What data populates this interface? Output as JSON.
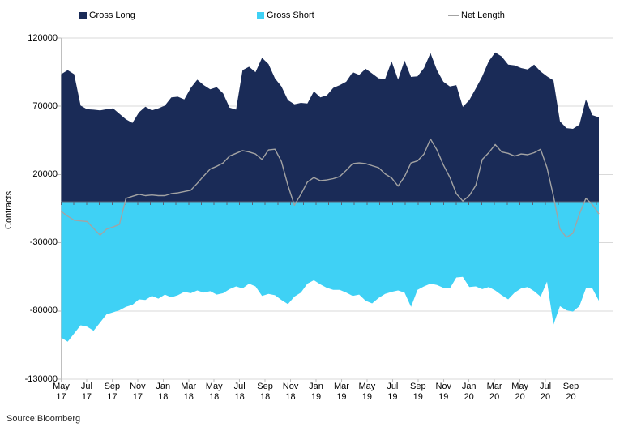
{
  "y_axis": {
    "title": "Contracts"
  },
  "source": "Source:Bloomberg",
  "colors": {
    "gross_long": "#1A2B57",
    "gross_short": "#3FD1F5",
    "net_length": "#A3A3A3",
    "grid": "#D9D9D9",
    "axis": "#BFBFBF",
    "zero_axis": "#5A6478",
    "text": "#000000"
  },
  "chart_data": {
    "type": "area",
    "title": "",
    "xlabel": "",
    "ylabel": "Contracts",
    "ylim": [
      -130000,
      120000
    ],
    "y_ticks": [
      120000,
      70000,
      20000,
      -30000,
      -80000,
      -130000
    ],
    "grid": true,
    "legend_position": "top",
    "x_tick_labels": [
      "May 17",
      "Jul 17",
      "Sep 17",
      "Nov 17",
      "Jan 18",
      "Mar 18",
      "May 18",
      "Jul 18",
      "Sep 18",
      "Nov 18",
      "Jan 19",
      "Mar 19",
      "May 19",
      "Jul 19",
      "Sep 19",
      "Nov 19",
      "Jan 20",
      "Mar 20",
      "May 20",
      "Jul 20",
      "Sep 20"
    ],
    "series": [
      {
        "name": "Gross Long",
        "type": "area",
        "color": "#1A2B57",
        "values": [
          93500,
          96500,
          93500,
          70500,
          67800,
          67500,
          67000,
          67800,
          68500,
          64500,
          60500,
          57800,
          65500,
          69700,
          67000,
          68500,
          70500,
          76500,
          77000,
          75000,
          83500,
          89500,
          85500,
          82500,
          84000,
          79500,
          69000,
          67500,
          96500,
          99000,
          95000,
          105500,
          101000,
          90500,
          84500,
          74500,
          71500,
          72500,
          72000,
          81000,
          76500,
          78000,
          83500,
          85500,
          88000,
          95000,
          93000,
          97500,
          94000,
          90500,
          90000,
          103000,
          89500,
          103500,
          91500,
          92000,
          98000,
          109000,
          96500,
          88000,
          84500,
          85500,
          69500,
          74500,
          83000,
          92000,
          103000,
          109500,
          106500,
          100500,
          100000,
          98000,
          97000,
          100500,
          95500,
          92000,
          89000,
          59000,
          54000,
          53500,
          56500,
          75000,
          63500,
          62000
        ]
      },
      {
        "name": "Gross Short",
        "type": "area",
        "color": "#3FD1F5",
        "values": [
          -99500,
          -102500,
          -96500,
          -90500,
          -91500,
          -94500,
          -88500,
          -82500,
          -81000,
          -79500,
          -77000,
          -75500,
          -71500,
          -72000,
          -69000,
          -71000,
          -68000,
          -70000,
          -68500,
          -66000,
          -67000,
          -65000,
          -66500,
          -65500,
          -68000,
          -67000,
          -64000,
          -62000,
          -63500,
          -60000,
          -62000,
          -69000,
          -67500,
          -68500,
          -72000,
          -75000,
          -69500,
          -66500,
          -60000,
          -57500,
          -60500,
          -63000,
          -64500,
          -64500,
          -66500,
          -69000,
          -68000,
          -72500,
          -74500,
          -70500,
          -67500,
          -66000,
          -65000,
          -66500,
          -77000,
          -64500,
          -62000,
          -60000,
          -61000,
          -63000,
          -63500,
          -55500,
          -55000,
          -62500,
          -62000,
          -64000,
          -62500,
          -65000,
          -68500,
          -71500,
          -66500,
          -63500,
          -62500,
          -65500,
          -69500,
          -58500,
          -90000,
          -76500,
          -79500,
          -80500,
          -76500,
          -63500,
          -63500,
          -72500
        ]
      },
      {
        "name": "Net Length",
        "type": "line",
        "color": "#A3A3A3",
        "values": [
          -7000,
          -10500,
          -13500,
          -14000,
          -14500,
          -19500,
          -24500,
          -20000,
          -18500,
          -16500,
          2500,
          4000,
          5500,
          4500,
          5000,
          4500,
          4500,
          6000,
          6500,
          7500,
          8500,
          13500,
          19000,
          24000,
          26000,
          28500,
          33500,
          35500,
          37500,
          36500,
          35000,
          31000,
          38000,
          38500,
          29500,
          12000,
          -2500,
          5500,
          14500,
          17800,
          15500,
          16000,
          17000,
          18500,
          23000,
          28000,
          28500,
          28000,
          26500,
          25000,
          20500,
          17500,
          11500,
          18500,
          28500,
          30000,
          35000,
          46000,
          38000,
          27000,
          18000,
          6000,
          500,
          4500,
          12000,
          31000,
          36000,
          42000,
          36500,
          35500,
          33500,
          35000,
          34500,
          36000,
          38500,
          25000,
          4000,
          -20000,
          -26000,
          -23000,
          -9000,
          2500,
          -2000,
          -9000
        ]
      }
    ]
  }
}
